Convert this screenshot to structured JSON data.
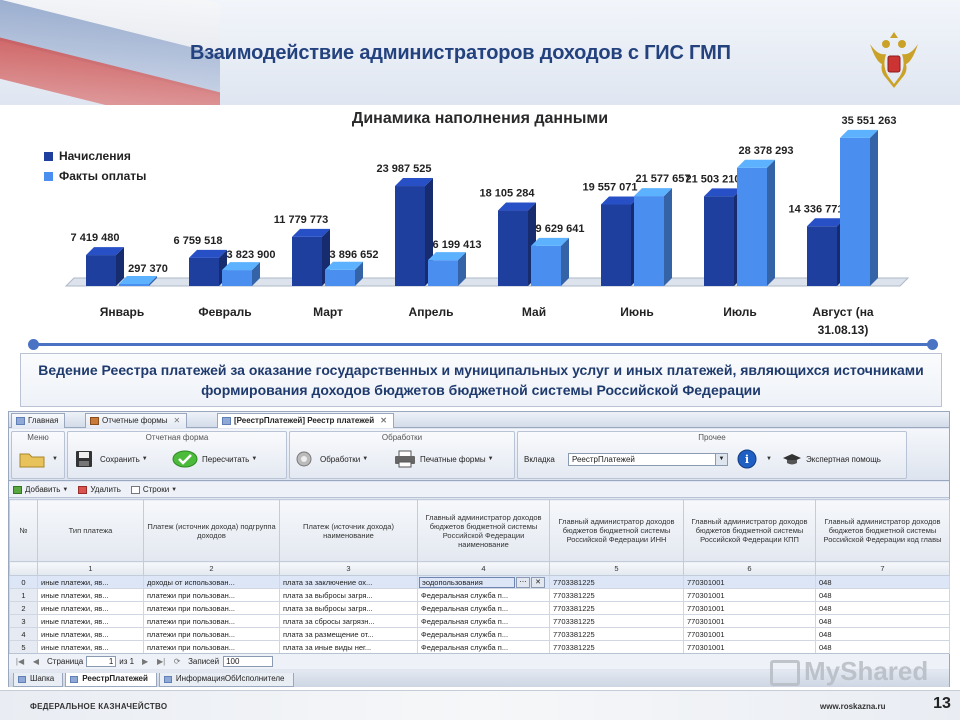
{
  "slide": {
    "title": "Взаимодействие администраторов доходов с ГИС ГМП",
    "subtitle": "Ведение Реестра платежей за оказание государственных и муниципальных услуг и иных платежей, являющихся источниками формирования доходов бюджетов бюджетной системы Российской Федерации",
    "footer_left": "ФЕДЕРАЛЬНОЕ КАЗНАЧЕЙСТВО",
    "footer_url": "www.roskazna.ru",
    "page_number": "13",
    "watermark": "MyShared"
  },
  "chart_data": {
    "type": "bar",
    "title": "Динамика наполнения данными",
    "categories": [
      "Январь",
      "Февраль",
      "Март",
      "Апрель",
      "Май",
      "Июнь",
      "Июль",
      "Август (на 31.08.13)"
    ],
    "series": [
      {
        "name": "Начисления",
        "color": "#1f3f9e",
        "values": [
          7419480,
          6759518,
          11779773,
          23987525,
          18105284,
          19557071,
          21503210,
          14336771
        ],
        "labels": [
          "7 419 480",
          "6 759 518",
          "11 779 773",
          "23 987 525",
          "18 105 284",
          "19 557 071",
          "21 503 210",
          "14 336 771"
        ]
      },
      {
        "name": "Факты оплаты",
        "color": "#4a8ef0",
        "values": [
          297370,
          3823900,
          3896652,
          6199413,
          9629641,
          21577657,
          28378293,
          35551263
        ],
        "labels": [
          "297 370",
          "3 823 900",
          "3 896 652",
          "6 199 413",
          "9 629 641",
          "21 577 657",
          "28 378 293",
          "35 551 263"
        ]
      }
    ],
    "ylim": [
      0,
      36000000
    ],
    "legend_position": "top-left",
    "grid": false
  },
  "app": {
    "tabs": [
      {
        "label": "Главная",
        "active": false
      },
      {
        "label": "Отчетные формы",
        "active": false
      },
      {
        "label": "[РеестрПлатежей] Реестр платежей",
        "active": true
      }
    ],
    "ribbon": {
      "groups": [
        "Меню",
        "Отчетная форма",
        "Обработки",
        "Прочее"
      ],
      "save": "Сохранить",
      "recalc": "Пересчитать",
      "processing": "Обработки",
      "print_forms": "Печатные формы",
      "tab_label": "Вкладка",
      "tab_value": "РеестрПлатежей",
      "expert_help": "Экспертная помощь"
    },
    "toolbar": {
      "add": "Добавить",
      "delete": "Удалить",
      "rows": "Строки"
    },
    "table": {
      "headers": [
        "№",
        "Тип платежа",
        "Платеж (источник дохода) подгруппа доходов",
        "Платеж (источник дохода) наименование",
        "Главный администратор доходов бюджетов бюджетной системы Российской Федерации наименование",
        "Главный администратор доходов бюджетов бюджетной системы Российской Федерации ИНН",
        "Главный администратор доходов бюджетов бюджетной системы Российской Федерации КПП",
        "Главный администратор доходов бюджетов бюджетной системы Российской Федерации код главы"
      ],
      "col_numbers": [
        "",
        "1",
        "2",
        "3",
        "4",
        "5",
        "6",
        "7"
      ],
      "rows": [
        [
          "0",
          "иные платежи, яв...",
          "доходы от использован...",
          "плата за заключение ох...",
          "эодопользования",
          "7703381225",
          "770301001",
          "048"
        ],
        [
          "1",
          "иные платежи, яв...",
          "платежи при пользован...",
          "плата за выбросы загря...",
          "Федеральная служба п...",
          "7703381225",
          "770301001",
          "048"
        ],
        [
          "2",
          "иные платежи, яв...",
          "платежи при пользован...",
          "плата за выбросы загря...",
          "Федеральная служба п...",
          "7703381225",
          "770301001",
          "048"
        ],
        [
          "3",
          "иные платежи, яв...",
          "платежи при пользован...",
          "плата за сбросы загрязн...",
          "Федеральная служба п...",
          "7703381225",
          "770301001",
          "048"
        ],
        [
          "4",
          "иные платежи, яв...",
          "платежи при пользован...",
          "плата за размещение от...",
          "Федеральная служба п...",
          "7703381225",
          "770301001",
          "048"
        ],
        [
          "5",
          "иные платежи, яв...",
          "платежи при пользован...",
          "плата за иные виды нег...",
          "Федеральная служба п...",
          "7703381225",
          "770301001",
          "048"
        ]
      ]
    },
    "pager": {
      "page_label": "Страница",
      "page_value": "1",
      "of_label": "из 1",
      "records_label": "Записей",
      "records_value": "100"
    },
    "bottom_tabs": [
      {
        "label": "Шапка",
        "active": false
      },
      {
        "label": "РеестрПлатежей",
        "active": true
      },
      {
        "label": "ИнформацияОбИсполнителе",
        "active": false
      }
    ]
  }
}
